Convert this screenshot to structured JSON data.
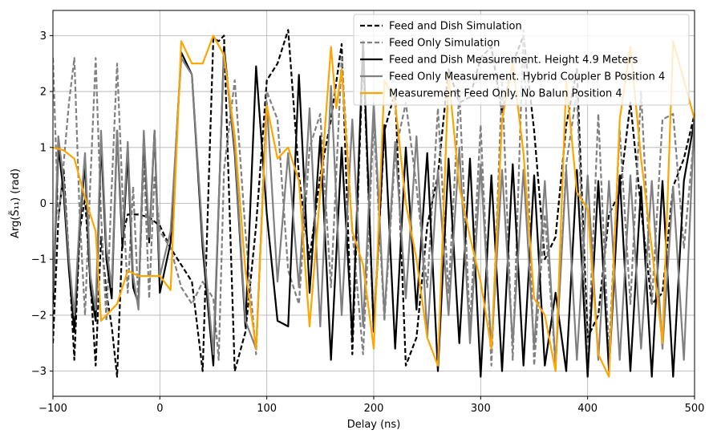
{
  "chart_data": {
    "type": "line",
    "xlabel": "Delay (ns)",
    "ylabel": "Arg(S̃₁₁) (rad)",
    "xlim": [
      -100,
      500
    ],
    "ylim": [
      -3.45,
      3.45
    ],
    "xticks": [
      -100,
      0,
      100,
      200,
      300,
      400,
      500
    ],
    "yticks": [
      -3,
      -2,
      -1,
      0,
      1,
      2,
      3
    ],
    "grid": true,
    "legend_position": "top-right",
    "series": [
      {
        "name": "Feed and Dish Simulation",
        "color": "#000000",
        "dash": "dashed",
        "x": [
          -100,
          -95,
          -90,
          -85,
          -80,
          -75,
          -70,
          -65,
          -60,
          -55,
          -50,
          -45,
          -40,
          -35,
          -30,
          -20,
          -10,
          0,
          10,
          20,
          30,
          40,
          50,
          55,
          60,
          70,
          80,
          90,
          100,
          110,
          120,
          130,
          140,
          150,
          160,
          170,
          180,
          190,
          200,
          210,
          220,
          230,
          240,
          250,
          260,
          270,
          280,
          290,
          300,
          310,
          320,
          330,
          340,
          350,
          360,
          370,
          380,
          390,
          400,
          410,
          420,
          430,
          440,
          450,
          460,
          470,
          480,
          490,
          500
        ],
        "y": [
          -2.5,
          -0.3,
          0.6,
          -1.0,
          -2.8,
          -0.5,
          0.1,
          -1.4,
          -2.9,
          -0.6,
          -1.6,
          -2.2,
          -3.1,
          -0.6,
          -0.2,
          -0.2,
          -0.25,
          -0.4,
          -0.8,
          -1.1,
          -1.4,
          -3.0,
          2.95,
          2.9,
          3.0,
          -3.0,
          -2.3,
          -0.4,
          2.2,
          2.5,
          3.1,
          0.5,
          -1.0,
          0.5,
          1.5,
          2.85,
          -2.7,
          2.7,
          -2.3,
          1.3,
          2.0,
          -2.9,
          -2.4,
          -0.4,
          0.5,
          2.4,
          1.8,
          1.9,
          2.6,
          2.8,
          1.6,
          2.5,
          3.0,
          1.3,
          -1.0,
          -0.6,
          1.4,
          2.4,
          -2.4,
          -2.0,
          -0.2,
          0.2,
          1.8,
          -0.1,
          -1.8,
          -1.6,
          0.3,
          0.8,
          1.6
        ]
      },
      {
        "name": "Feed Only Simulation",
        "color": "#808080",
        "dash": "dashed",
        "x": [
          -100,
          -95,
          -90,
          -85,
          -80,
          -75,
          -70,
          -65,
          -60,
          -55,
          -50,
          -45,
          -40,
          -35,
          -30,
          -25,
          -20,
          -15,
          -10,
          -5,
          0,
          10,
          20,
          30,
          40,
          50,
          55,
          60,
          70,
          80,
          90,
          100,
          110,
          120,
          130,
          140,
          150,
          160,
          170,
          180,
          190,
          200,
          210,
          220,
          230,
          240,
          250,
          260,
          270,
          280,
          290,
          300,
          310,
          320,
          330,
          340,
          350,
          360,
          370,
          380,
          390,
          400,
          410,
          420,
          430,
          440,
          450,
          460,
          470,
          480,
          490,
          500
        ],
        "y": [
          2.6,
          -0.3,
          0.7,
          1.8,
          2.6,
          -0.2,
          -2.0,
          0.4,
          2.6,
          -0.2,
          -2.1,
          0.3,
          2.5,
          0.2,
          -1.6,
          0.3,
          -1.8,
          0.8,
          -1.7,
          0.5,
          -0.5,
          -0.8,
          -1.5,
          -1.8,
          -1.4,
          -1.7,
          -2.8,
          0.6,
          2.2,
          -0.5,
          -2.7,
          2.0,
          1.5,
          -1.2,
          -1.8,
          1.0,
          1.6,
          -1.5,
          2.6,
          -0.5,
          -2.7,
          1.5,
          -2.1,
          0.9,
          1.8,
          0.3,
          -1.5,
          1.7,
          -1.6,
          2.0,
          -2.2,
          1.4,
          -2.9,
          2.2,
          -2.8,
          3.1,
          -2.9,
          -0.2,
          -2.9,
          0.7,
          2.0,
          -2.9,
          1.6,
          -2.7,
          1.3,
          -1.8,
          2.0,
          -1.8,
          1.5,
          1.6,
          -0.8,
          1.3
        ]
      },
      {
        "name": "Feed and Dish Measurement. Height 4.9 Meters",
        "color": "#000000",
        "dash": "solid",
        "x": [
          -100,
          -95,
          -90,
          -85,
          -80,
          -75,
          -70,
          -65,
          -60,
          -55,
          -50,
          -45,
          -40,
          -35,
          -30,
          -25,
          -20,
          -15,
          -10,
          -5,
          0,
          10,
          20,
          30,
          40,
          50,
          60,
          70,
          80,
          90,
          100,
          110,
          120,
          130,
          140,
          150,
          160,
          170,
          180,
          190,
          200,
          210,
          220,
          230,
          240,
          250,
          260,
          270,
          280,
          290,
          300,
          310,
          320,
          330,
          340,
          350,
          360,
          370,
          380,
          390,
          400,
          410,
          420,
          430,
          440,
          450,
          460,
          470,
          480,
          490,
          500
        ],
        "y": [
          -1.8,
          1.0,
          0.2,
          -1.2,
          -2.3,
          -0.4,
          0.7,
          -1.5,
          -2.1,
          1.1,
          -1.0,
          -1.7,
          1.3,
          -0.8,
          0.9,
          -1.5,
          -1.8,
          1.2,
          -0.7,
          1.3,
          -1.6,
          -0.7,
          2.7,
          2.3,
          -0.8,
          -2.9,
          2.8,
          0.9,
          -2.2,
          2.45,
          -0.2,
          -2.1,
          -2.2,
          2.3,
          -1.6,
          1.2,
          -2.8,
          1.0,
          -2.4,
          2.9,
          -2.3,
          1.4,
          -2.6,
          1.0,
          -1.9,
          0.9,
          -3.0,
          0.8,
          -2.5,
          0.8,
          -3.1,
          0.5,
          -3.0,
          0.7,
          -2.9,
          0.5,
          -2.9,
          -1.6,
          -3.0,
          0.6,
          -3.1,
          0.4,
          -3.0,
          0.5,
          -3.0,
          0.3,
          -3.1,
          0.4,
          -3.1,
          0.4,
          1.5
        ]
      },
      {
        "name": "Feed Only Measurement. Hybrid Coupler B Position 4",
        "color": "#808080",
        "dash": "solid",
        "x": [
          -100,
          -95,
          -90,
          -85,
          -80,
          -75,
          -70,
          -65,
          -60,
          -55,
          -50,
          -45,
          -40,
          -35,
          -30,
          -25,
          -20,
          -15,
          -10,
          -5,
          0,
          10,
          20,
          30,
          40,
          50,
          60,
          70,
          80,
          90,
          100,
          110,
          120,
          130,
          140,
          150,
          160,
          170,
          180,
          190,
          200,
          210,
          220,
          230,
          240,
          250,
          260,
          270,
          280,
          290,
          300,
          310,
          320,
          330,
          340,
          350,
          360,
          370,
          380,
          390,
          400,
          410,
          420,
          430,
          440,
          450,
          460,
          470,
          480,
          490,
          500
        ],
        "y": [
          -1.6,
          1.2,
          0.4,
          -1.0,
          -2.0,
          -0.3,
          0.9,
          -1.3,
          -1.9,
          1.3,
          -0.8,
          -1.5,
          1.3,
          -0.6,
          1.1,
          -1.3,
          -1.9,
          1.3,
          -0.6,
          1.3,
          -1.3,
          -0.5,
          2.6,
          2.3,
          -0.6,
          -2.7,
          2.7,
          1.0,
          -2.1,
          -2.6,
          1.8,
          -1.4,
          0.9,
          -1.5,
          1.7,
          -2.2,
          2.1,
          -2.0,
          1.5,
          -2.2,
          1.8,
          -2.0,
          1.1,
          -1.7,
          1.2,
          -2.4,
          0.6,
          -2.0,
          1.0,
          -2.5,
          0.7,
          -2.6,
          0.6,
          -2.5,
          0.6,
          -2.6,
          0.4,
          -2.9,
          0.6,
          -2.8,
          0.5,
          -2.8,
          0.4,
          -2.8,
          0.5,
          -2.6,
          0.4,
          -2.6,
          0.3,
          -2.8,
          1.6
        ]
      },
      {
        "name": "Measurement Feed Only. No Balun Position 4",
        "color": "#ffa500",
        "dash": "solid",
        "x": [
          -100,
          -90,
          -80,
          -70,
          -60,
          -55,
          -50,
          -40,
          -30,
          -20,
          -10,
          0,
          10,
          20,
          30,
          40,
          50,
          60,
          70,
          80,
          90,
          100,
          110,
          115,
          120,
          130,
          140,
          150,
          160,
          165,
          170,
          180,
          190,
          200,
          210,
          220,
          230,
          240,
          250,
          260,
          270,
          280,
          290,
          300,
          310,
          320,
          330,
          340,
          350,
          360,
          370,
          380,
          390,
          400,
          410,
          420,
          430,
          440,
          450,
          460,
          470,
          480,
          490,
          500
        ],
        "y": [
          1.0,
          0.95,
          0.8,
          0.1,
          -0.5,
          -2.1,
          -2.0,
          -1.8,
          -1.2,
          -1.3,
          -1.3,
          -1.3,
          -1.55,
          2.9,
          2.5,
          2.5,
          3.0,
          2.65,
          1.2,
          -1.2,
          -2.6,
          1.75,
          0.8,
          0.9,
          1.0,
          0.4,
          -2.2,
          0.2,
          2.8,
          1.7,
          2.4,
          -0.5,
          -1.1,
          -2.6,
          2.2,
          1.8,
          0.0,
          -1.0,
          -2.4,
          -2.9,
          2.3,
          0.3,
          -0.6,
          -1.4,
          -2.6,
          1.5,
          2.5,
          0.9,
          -1.7,
          -2.0,
          -3.0,
          2.2,
          0.2,
          -0.1,
          -2.7,
          -3.1,
          1.5,
          2.8,
          0.8,
          -0.8,
          -2.5,
          2.9,
          2.2,
          1.5
        ]
      }
    ]
  }
}
